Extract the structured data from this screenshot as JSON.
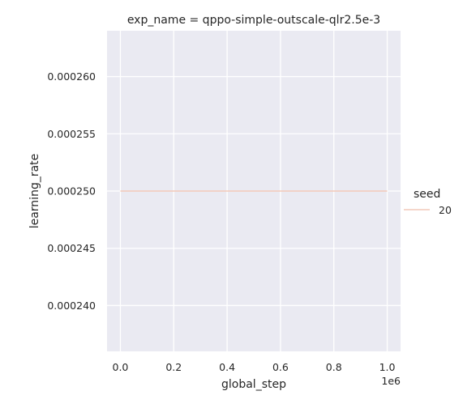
{
  "chart_data": {
    "type": "line",
    "title": "exp_name = qppo-simple-outscale-qlr2.5e-3",
    "xlabel": "global_step",
    "ylabel": "learning_rate",
    "x_offset_label": "1e6",
    "xlim": [
      -50000,
      1050000
    ],
    "ylim": [
      0.000236,
      0.000264
    ],
    "x_ticks": [
      0,
      200000,
      400000,
      600000,
      800000,
      1000000
    ],
    "x_tick_labels": [
      "0.0",
      "0.2",
      "0.4",
      "0.6",
      "0.8",
      "1.0"
    ],
    "y_ticks": [
      0.00024,
      0.000245,
      0.00025,
      0.000255,
      0.00026
    ],
    "y_tick_labels": [
      "0.000240",
      "0.000245",
      "0.000250",
      "0.000255",
      "0.000260"
    ],
    "grid": true,
    "legend": {
      "title": "seed",
      "placement": "right"
    },
    "series": [
      {
        "name": "20",
        "color": "#f2c9b8",
        "x": [
          0,
          1000000
        ],
        "y": [
          0.00025,
          0.00025
        ]
      }
    ]
  }
}
